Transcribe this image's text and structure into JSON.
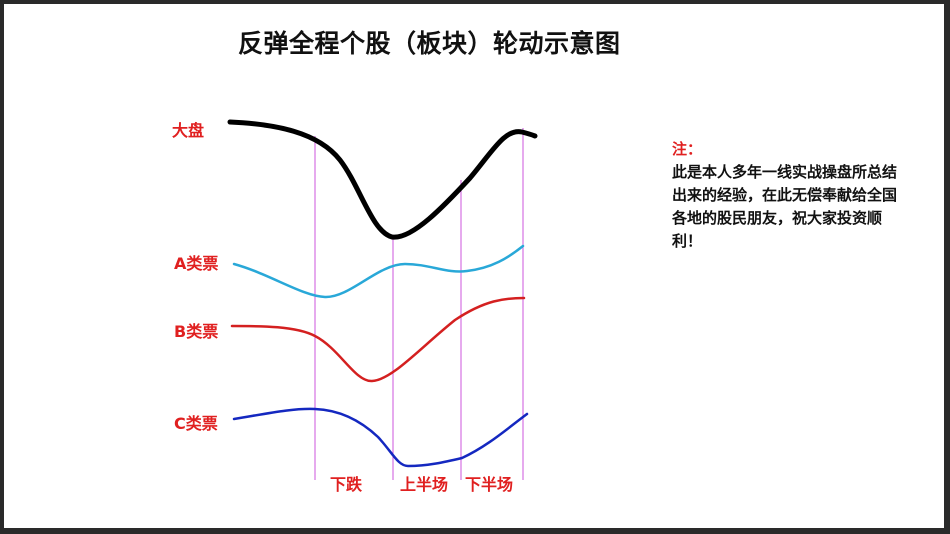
{
  "title": "反弹全程个股（板块）轮动示意图",
  "series": [
    {
      "key": "market",
      "label": "大盘",
      "color": "#000000"
    },
    {
      "key": "a",
      "label": "A类票",
      "color": "#29a8d8"
    },
    {
      "key": "b",
      "label": "B类票",
      "color": "#d42020"
    },
    {
      "key": "c",
      "label": "C类票",
      "color": "#1428c0"
    }
  ],
  "phases": [
    "下跌",
    "上半场",
    "下半场"
  ],
  "guide_color": "#cc55dd",
  "note": {
    "heading": "注：",
    "body": "此是本人多年一线实战操盘所总结出来的经验，在此无偿奉献给全国各地的股民朋友，祝大家投资顺利！"
  }
}
